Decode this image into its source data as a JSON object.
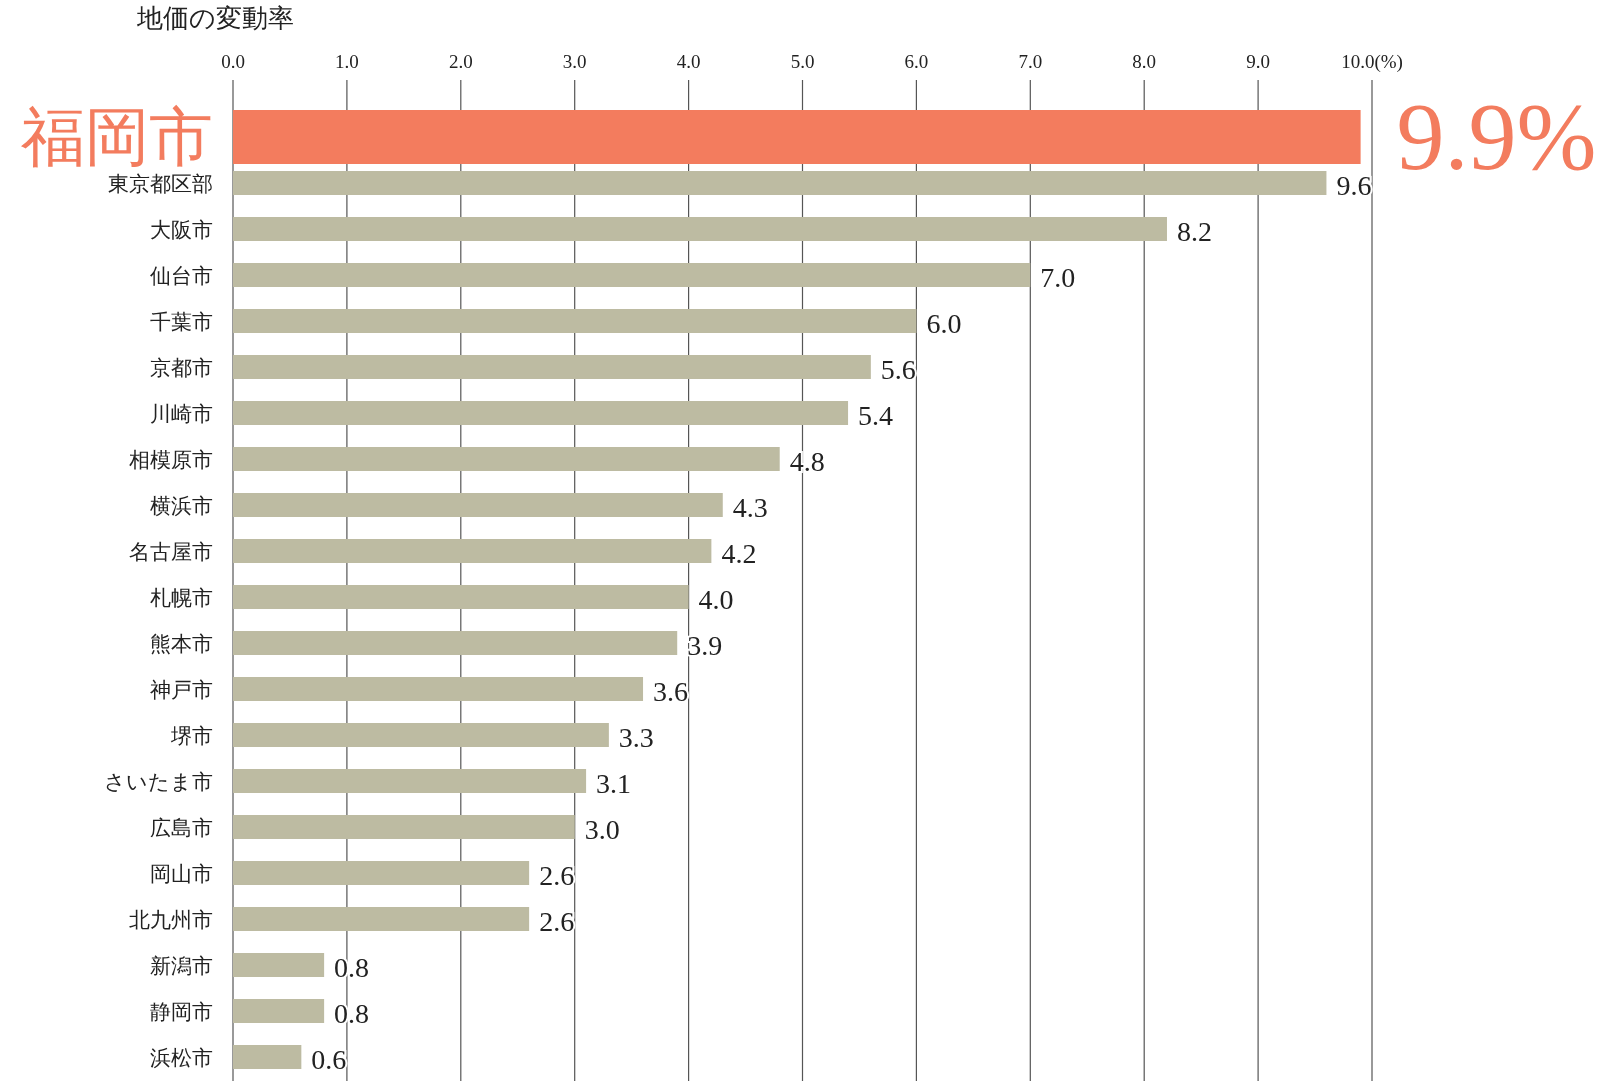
{
  "chart_data": {
    "type": "bar",
    "orientation": "horizontal",
    "title": "地価の変動率",
    "categories": [
      "福岡市",
      "東京都区部",
      "大阪市",
      "仙台市",
      "千葉市",
      "京都市",
      "川崎市",
      "相模原市",
      "横浜市",
      "名古屋市",
      "札幌市",
      "熊本市",
      "神戸市",
      "堺市",
      "さいたま市",
      "広島市",
      "岡山市",
      "北九州市",
      "新潟市",
      "静岡市",
      "浜松市"
    ],
    "values": [
      9.9,
      9.6,
      8.2,
      7.0,
      6.0,
      5.6,
      5.4,
      4.8,
      4.3,
      4.2,
      4.0,
      3.9,
      3.6,
      3.3,
      3.1,
      3.0,
      2.6,
      2.6,
      0.8,
      0.8,
      0.6
    ],
    "value_labels": [
      "9.9%",
      "9.6",
      "8.2",
      "7.0",
      "6.0",
      "5.6",
      "5.4",
      "4.8",
      "4.3",
      "4.2",
      "4.0",
      "3.9",
      "3.6",
      "3.3",
      "3.1",
      "3.0",
      "2.6",
      "2.6",
      "0.8",
      "0.8",
      "0.6"
    ],
    "colors": [
      "#f37c5e",
      "#bdbba2",
      "#bdbba2",
      "#bdbba2",
      "#bdbba2",
      "#bdbba2",
      "#bdbba2",
      "#bdbba2",
      "#bdbba2",
      "#bdbba2",
      "#bdbba2",
      "#bdbba2",
      "#bdbba2",
      "#bdbba2",
      "#bdbba2",
      "#bdbba2",
      "#bdbba2",
      "#bdbba2",
      "#bdbba2",
      "#bdbba2",
      "#bdbba2"
    ],
    "xlim": [
      0,
      10
    ],
    "xticks": [
      {
        "value": 0,
        "label": "0.0"
      },
      {
        "value": 1,
        "label": "1.0"
      },
      {
        "value": 2,
        "label": "2.0"
      },
      {
        "value": 3,
        "label": "3.0"
      },
      {
        "value": 4,
        "label": "4.0"
      },
      {
        "value": 5,
        "label": "5.0"
      },
      {
        "value": 6,
        "label": "6.0"
      },
      {
        "value": 7,
        "label": "7.0"
      },
      {
        "value": 8,
        "label": "8.0"
      },
      {
        "value": 9,
        "label": "9.0"
      },
      {
        "value": 10,
        "label": "10.0(%)"
      }
    ],
    "grid": "x"
  }
}
